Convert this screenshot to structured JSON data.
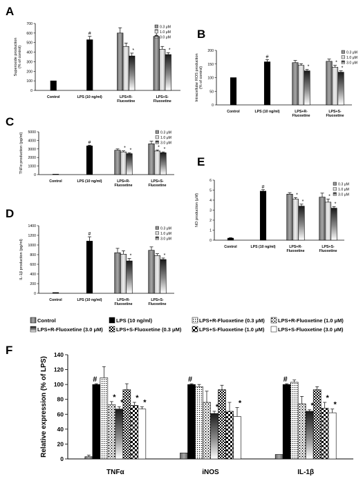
{
  "chart_data": [
    {
      "panel_letter": "A",
      "type": "bar",
      "ylabel": "Superoxide production\n(% of control)",
      "ylim": [
        0,
        700
      ],
      "yticks": [
        0,
        100,
        200,
        300,
        400,
        500,
        600,
        700
      ],
      "groups": [
        {
          "label": "Control",
          "values": [
            100
          ],
          "errors": [
            0
          ],
          "marks": [
            ""
          ],
          "styles": [
            "black"
          ]
        },
        {
          "label": "LPS (10 ng/ml)",
          "values": [
            530
          ],
          "errors": [
            35
          ],
          "marks": [
            "#"
          ],
          "styles": [
            "black"
          ]
        },
        {
          "label": "LPS+R-\nFluoxetine",
          "values": [
            600,
            460,
            360
          ],
          "errors": [
            55,
            35,
            30
          ],
          "marks": [
            "",
            "",
            "*"
          ],
          "styles": [
            "gray",
            "light",
            "grad"
          ]
        },
        {
          "label": "LPS+S-\nFluoxetine",
          "values": [
            565,
            430,
            375
          ],
          "errors": [
            70,
            30,
            20
          ],
          "marks": [
            "",
            "",
            "*"
          ],
          "styles": [
            "gray",
            "light",
            "grad"
          ]
        }
      ],
      "legend": [
        "0.3 μM",
        "1.0 μM",
        "3.0 μM"
      ]
    },
    {
      "panel_letter": "B",
      "type": "bar",
      "ylabel": "Intracellular ROS production\n(% of control)",
      "ylim": [
        0,
        200
      ],
      "yticks": [
        0,
        50,
        100,
        150,
        200
      ],
      "groups": [
        {
          "label": "Control",
          "values": [
            100
          ],
          "errors": [
            0
          ],
          "marks": [
            ""
          ],
          "styles": [
            "black"
          ]
        },
        {
          "label": "LPS (10 ng/ml)",
          "values": [
            158
          ],
          "errors": [
            8
          ],
          "marks": [
            "#"
          ],
          "styles": [
            "black"
          ]
        },
        {
          "label": "LPS+R-\nFluoxetine",
          "values": [
            155,
            145,
            125
          ],
          "errors": [
            8,
            6,
            5
          ],
          "marks": [
            "",
            "",
            "*"
          ],
          "styles": [
            "gray",
            "light",
            "grad"
          ]
        },
        {
          "label": "LPS+S-\nFluoxetine",
          "values": [
            160,
            138,
            120
          ],
          "errors": [
            8,
            7,
            5
          ],
          "marks": [
            "",
            "*",
            "*"
          ],
          "styles": [
            "gray",
            "light",
            "grad"
          ]
        }
      ],
      "legend": [
        "0.3 μM",
        "1.0 μM",
        "3.0 μM"
      ]
    },
    {
      "panel_letter": "C",
      "type": "bar",
      "ylabel": "TNFα production (pg/ml)",
      "ylim": [
        0,
        5000
      ],
      "yticks": [
        0,
        1000,
        2000,
        3000,
        4000,
        5000
      ],
      "groups": [
        {
          "label": "Control",
          "values": [
            30
          ],
          "errors": [
            0
          ],
          "marks": [
            ""
          ],
          "styles": [
            "black"
          ]
        },
        {
          "label": "LPS (10 ng/ml)",
          "values": [
            3350
          ],
          "errors": [
            80
          ],
          "marks": [
            "#"
          ],
          "styles": [
            "black"
          ]
        },
        {
          "label": "LPS+R-\nFluoxetine",
          "values": [
            2850,
            2650,
            2450
          ],
          "errors": [
            150,
            120,
            100
          ],
          "marks": [
            "",
            "*",
            "*"
          ],
          "styles": [
            "gray",
            "light",
            "grad"
          ]
        },
        {
          "label": "LPS+S-\nFluoxetine",
          "values": [
            3600,
            2750,
            2550
          ],
          "errors": [
            300,
            130,
            100
          ],
          "marks": [
            "",
            "*",
            "*"
          ],
          "styles": [
            "gray",
            "light",
            "grad"
          ]
        }
      ],
      "legend": [
        "0.3 μM",
        "1.0 μM",
        "3.0 μM"
      ]
    },
    {
      "panel_letter": "D",
      "type": "bar",
      "ylabel": "IL-1β production (pg/ml)",
      "ylim": [
        0,
        1400
      ],
      "yticks": [
        0,
        200,
        400,
        600,
        800,
        1000,
        1200,
        1400
      ],
      "groups": [
        {
          "label": "Control",
          "values": [
            15
          ],
          "errors": [
            0
          ],
          "marks": [
            ""
          ],
          "styles": [
            "black"
          ]
        },
        {
          "label": "LPS (10 ng/ml)",
          "values": [
            1080
          ],
          "errors": [
            90
          ],
          "marks": [
            "#"
          ],
          "styles": [
            "black"
          ]
        },
        {
          "label": "LPS+R-\nFluoxetine",
          "values": [
            840,
            810,
            670
          ],
          "errors": [
            90,
            70,
            50
          ],
          "marks": [
            "",
            "",
            "*"
          ],
          "styles": [
            "gray",
            "light",
            "grad"
          ]
        },
        {
          "label": "LPS+S-\nFluoxetine",
          "values": [
            890,
            780,
            700
          ],
          "errors": [
            70,
            40,
            30
          ],
          "marks": [
            "",
            "",
            "*"
          ],
          "styles": [
            "gray",
            "light",
            "grad"
          ]
        }
      ],
      "legend": [
        "0.3 μM",
        "1.0 μM",
        "3.0 μM"
      ]
    },
    {
      "panel_letter": "E",
      "type": "bar",
      "ylabel": "NO production (μM)",
      "ylim": [
        0,
        6
      ],
      "yticks": [
        0,
        1,
        2,
        3,
        4,
        5,
        6
      ],
      "groups": [
        {
          "label": "Control",
          "values": [
            0.2
          ],
          "errors": [
            0.05
          ],
          "marks": [
            ""
          ],
          "styles": [
            "black"
          ]
        },
        {
          "label": "LPS (10 ng/ml)",
          "values": [
            4.9
          ],
          "errors": [
            0.15
          ],
          "marks": [
            "#"
          ],
          "styles": [
            "black"
          ]
        },
        {
          "label": "LPS+R-\nFluoxetine",
          "values": [
            4.6,
            4.1,
            3.4
          ],
          "errors": [
            0.15,
            0.15,
            0.2
          ],
          "marks": [
            "",
            "*",
            "*"
          ],
          "styles": [
            "gray",
            "light",
            "grad"
          ]
        },
        {
          "label": "LPS+S-\nFluoxetine",
          "values": [
            4.3,
            3.8,
            3.2
          ],
          "errors": [
            0.4,
            0.3,
            0.15
          ],
          "marks": [
            "",
            "*",
            "*"
          ],
          "styles": [
            "gray",
            "light",
            "grad"
          ]
        }
      ],
      "legend": [
        "0.3 μM",
        "1.0 μM",
        "3.0 μM"
      ]
    },
    {
      "panel_letter": "F",
      "type": "bar",
      "ylabel": "Relative expression (% of LPS)",
      "ylim": [
        0,
        140
      ],
      "yticks": [
        0,
        20,
        40,
        60,
        80,
        100,
        120,
        140
      ],
      "categories": [
        "TNFα",
        "iNOS",
        "IL-1β"
      ],
      "series": [
        {
          "name": "Control",
          "style": "gray",
          "values": [
            3,
            8,
            6
          ],
          "errors": [
            2,
            0,
            0
          ],
          "marks": [
            "",
            "",
            ""
          ]
        },
        {
          "name": "LPS (10 ng/ml)",
          "style": "black",
          "values": [
            100,
            100,
            100
          ],
          "errors": [
            1,
            1,
            1
          ],
          "marks": [
            "#",
            "#",
            "#"
          ]
        },
        {
          "name": "LPS+R-Fluoxetine (0.3 μM)",
          "style": "dots",
          "values": [
            109,
            97,
            103
          ],
          "errors": [
            15,
            3,
            3
          ],
          "marks": [
            "",
            "",
            ""
          ]
        },
        {
          "name": "LPS+R-Fluoxetine (1.0 μM)",
          "style": "bigdots",
          "values": [
            73,
            76,
            74
          ],
          "errors": [
            4,
            15,
            10
          ],
          "marks": [
            "*",
            "",
            ""
          ]
        },
        {
          "name": "LPS+R-Fluoxetine (3.0 μM)",
          "style": "grad",
          "values": [
            67,
            61,
            64
          ],
          "errors": [
            3,
            3,
            2
          ],
          "marks": [
            "*",
            "*",
            "*"
          ]
        },
        {
          "name": "LPS+S-Fluoxetine (0.3 μM)",
          "style": "checker",
          "values": [
            93,
            93,
            93
          ],
          "errors": [
            8,
            6,
            4
          ],
          "marks": [
            "",
            "",
            ""
          ]
        },
        {
          "name": "LPS+S-Fluoxetine (1.0 μM)",
          "style": "checker2",
          "values": [
            72,
            64,
            68
          ],
          "errors": [
            4,
            12,
            8
          ],
          "marks": [
            "*",
            "",
            "*"
          ]
        },
        {
          "name": "LPS+S-Fluoxetine (3.0 μM)",
          "style": "white",
          "values": [
            67,
            57,
            62
          ],
          "errors": [
            3,
            12,
            5
          ],
          "marks": [
            "*",
            "*",
            "*"
          ]
        }
      ]
    }
  ]
}
